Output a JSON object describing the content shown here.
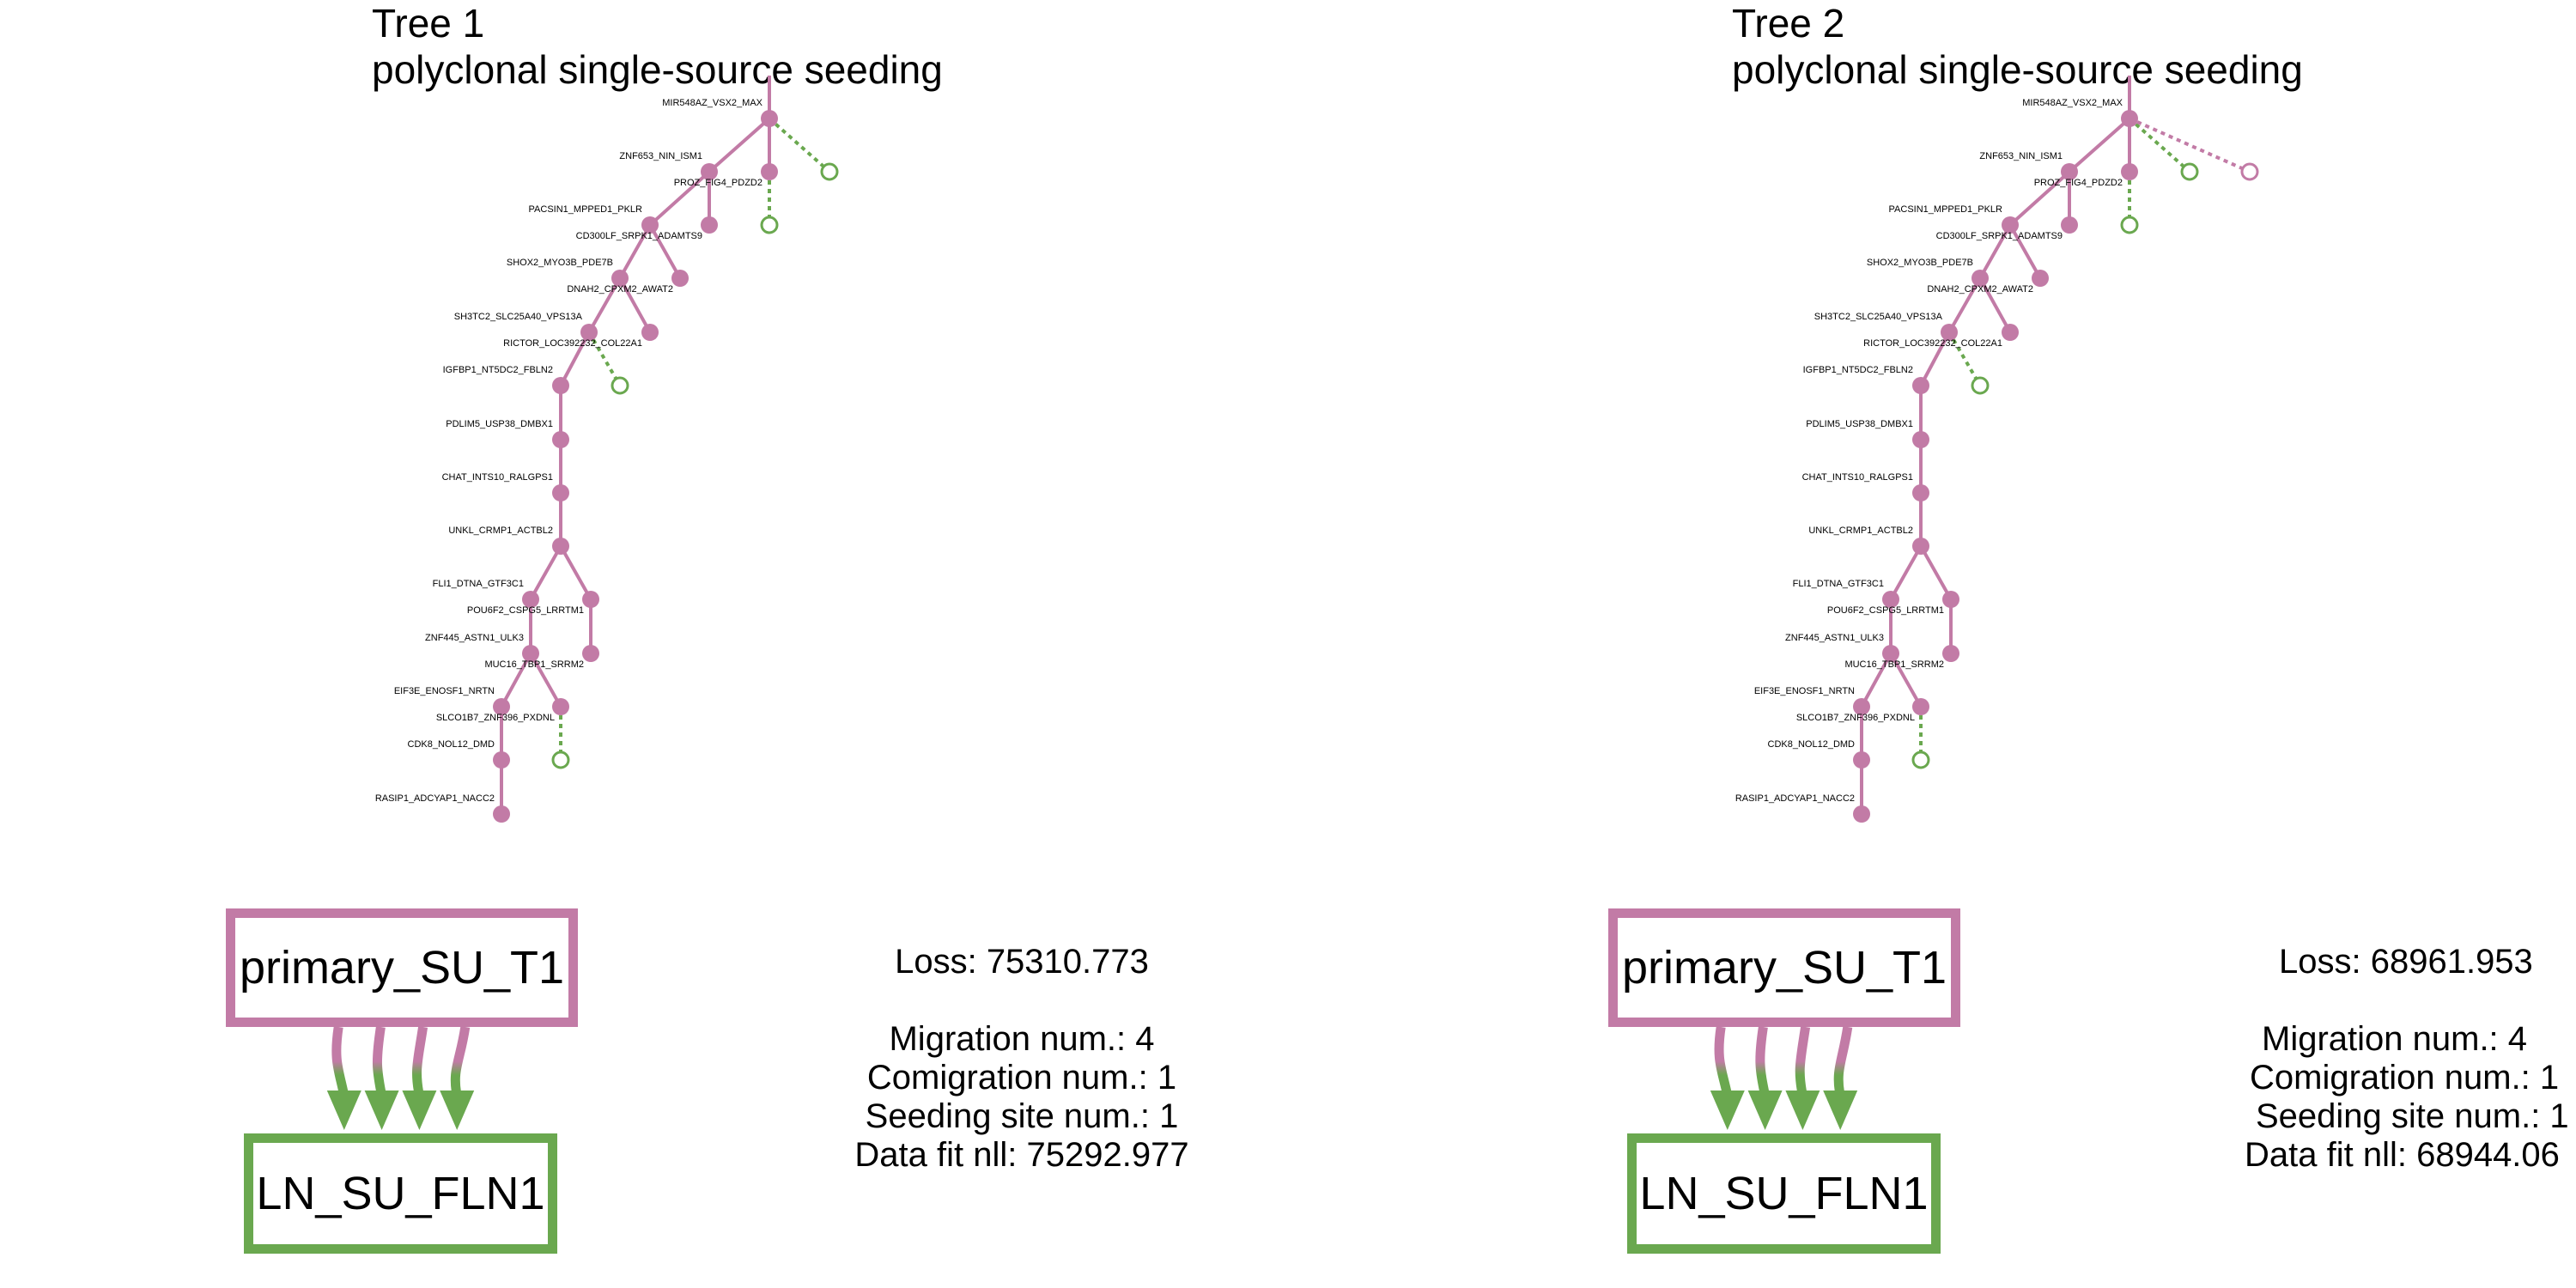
{
  "colors": {
    "primary": "#c27ba6",
    "lymph_node": "#6aa84f"
  },
  "panels": [
    {
      "title_line1": "Tree 1",
      "title_line2": "polyclonal single-source seeding",
      "loss_text": "Loss: 75310.773",
      "migration_text": "Migration num.: 4",
      "comigration_text": "Comigration num.: 1",
      "seeding_text": "Seeding site num.: 1",
      "datafit_text": "Data fit nll: 75292.977",
      "tree_labels": [
        "MIR548AZ_VSX2_MAX",
        "ZNF653_NIN_ISM1",
        "PROZ_FIG4_PDZD2",
        "PACSIN1_MPPED1_PKLR",
        "CD300LF_SRPK1_ADAMTS9",
        "SHOX2_MYO3B_PDE7B",
        "DNAH2_CPXM2_AWAT2",
        "SH3TC2_SLC25A40_VPS13A",
        "RICTOR_LOC392232_COL22A1",
        "IGFBP1_NT5DC2_FBLN2",
        "PDLIM5_USP38_DMBX1",
        "CHAT_INTS10_RALGPS1",
        "UNKL_CRMP1_ACTBL2",
        "FLI1_DTNA_GTF3C1",
        "POU6F2_CSPG5_LRRTM1",
        "ZNF445_ASTN1_ULK3",
        "MUC16_TBP1_SRRM2",
        "EIF3E_ENOSF1_NRTN",
        "SLCO1B7_ZNF396_PXDNL",
        "CDK8_NOL12_DMD",
        "RASIP1_ADCYAP1_NACC2"
      ],
      "source_site": "primary_SU_T1",
      "target_site": "LN_SU_FLN1",
      "extra_hollow_primary": false
    },
    {
      "title_line1": "Tree 2",
      "title_line2": "polyclonal single-source seeding",
      "loss_text": "Loss: 68961.953",
      "migration_text": "Migration num.: 4",
      "comigration_text": "Comigration num.: 1",
      "seeding_text": "Seeding site num.: 1",
      "datafit_text": "Data fit nll: 68944.06",
      "tree_labels": [
        "MIR548AZ_VSX2_MAX",
        "ZNF653_NIN_ISM1",
        "PROZ_FIG4_PDZD2",
        "PACSIN1_MPPED1_PKLR",
        "CD300LF_SRPK1_ADAMTS9",
        "SHOX2_MYO3B_PDE7B",
        "DNAH2_CPXM2_AWAT2",
        "SH3TC2_SLC25A40_VPS13A",
        "RICTOR_LOC392232_COL22A1",
        "IGFBP1_NT5DC2_FBLN2",
        "PDLIM5_USP38_DMBX1",
        "CHAT_INTS10_RALGPS1",
        "UNKL_CRMP1_ACTBL2",
        "FLI1_DTNA_GTF3C1",
        "POU6F2_CSPG5_LRRTM1",
        "ZNF445_ASTN1_ULK3",
        "MUC16_TBP1_SRRM2",
        "EIF3E_ENOSF1_NRTN",
        "SLCO1B7_ZNF396_PXDNL",
        "CDK8_NOL12_DMD",
        "RASIP1_ADCYAP1_NACC2"
      ],
      "source_site": "primary_SU_T1",
      "target_site": "LN_SU_FLN1",
      "extra_hollow_primary": true
    }
  ]
}
